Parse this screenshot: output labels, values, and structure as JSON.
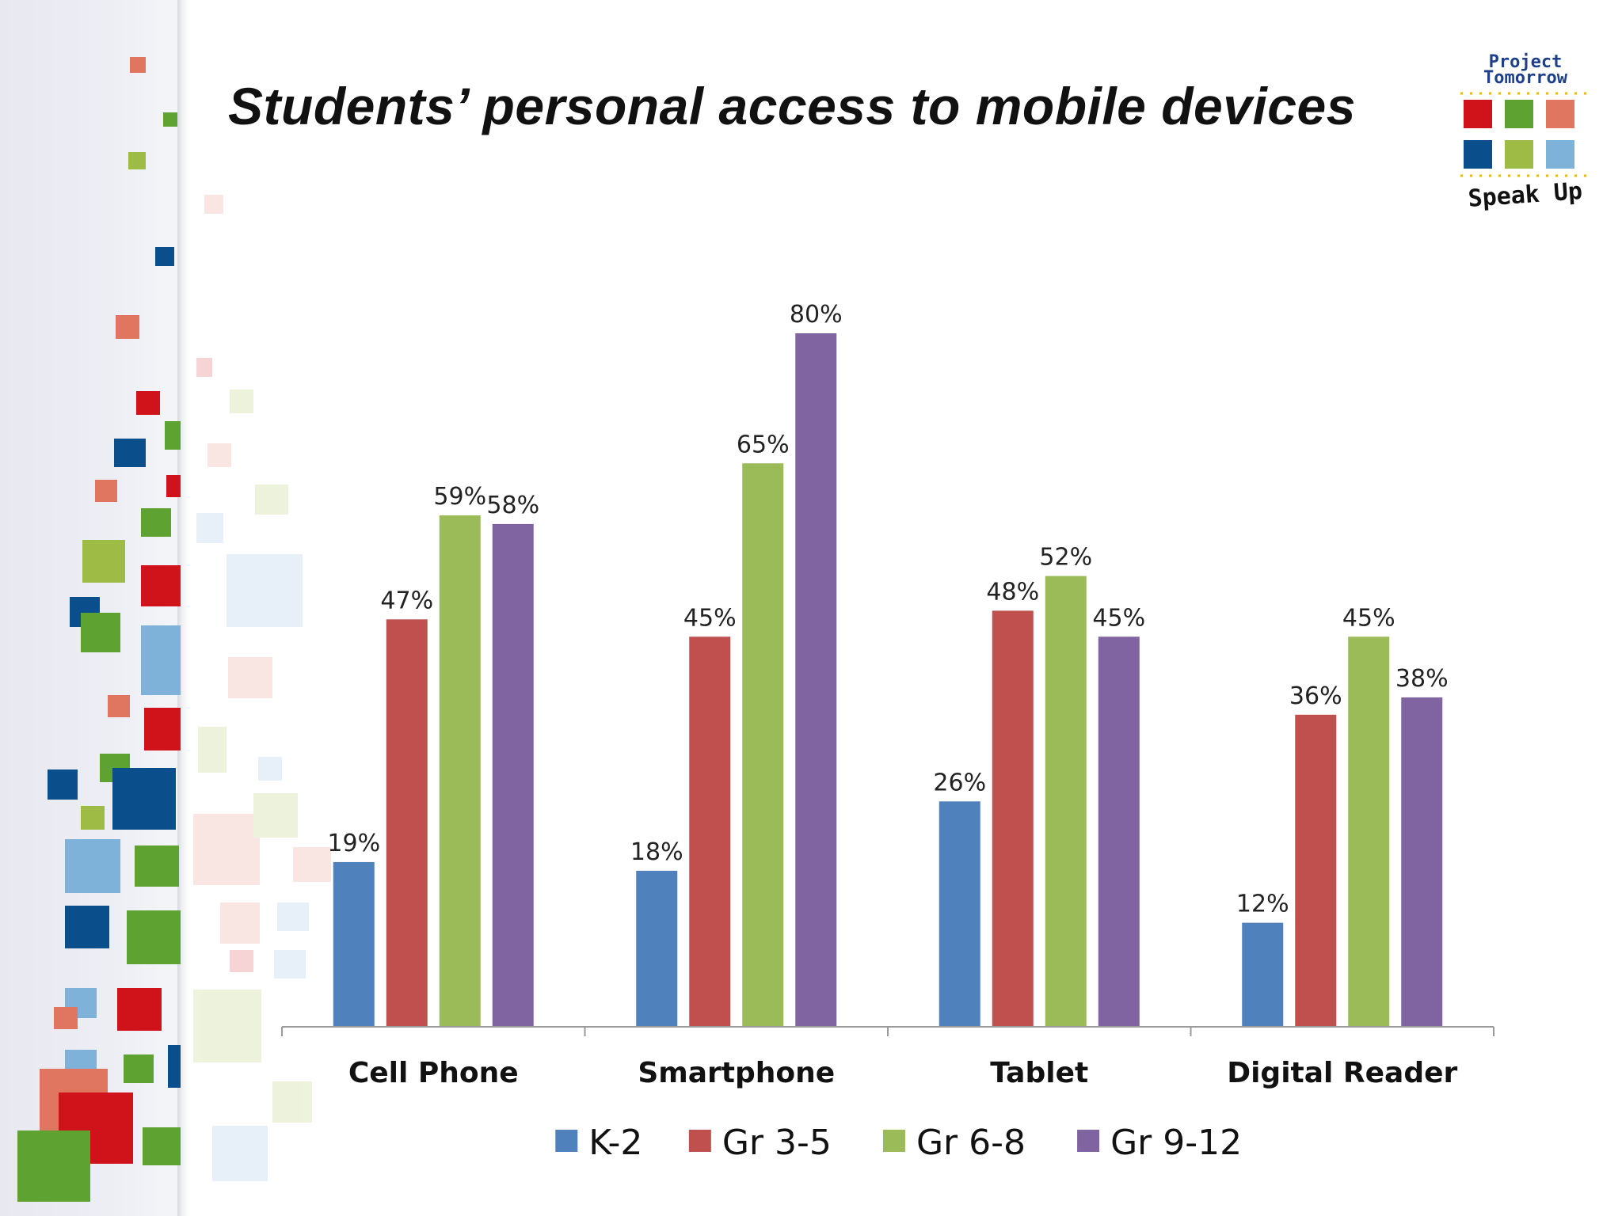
{
  "slide": {
    "title": "Students’ personal access to mobile devices"
  },
  "logo": {
    "line1": "Project",
    "line2": "Tomorrow",
    "line3": "Speak Up",
    "squares": [
      "#d0121b",
      "#5ea331",
      "#e07560",
      "#0a4f8c",
      "#9dbb45",
      "#7fb2d9"
    ]
  },
  "chart_data": {
    "type": "bar",
    "categories": [
      "Cell Phone",
      "Smartphone",
      "Tablet",
      "Digital Reader"
    ],
    "series": [
      {
        "name": "K-2",
        "color": "#4f81bd",
        "values": [
          19,
          18,
          26,
          12
        ],
        "labels": [
          "19%",
          "18%",
          "26%",
          "12%"
        ]
      },
      {
        "name": "Gr 3-5",
        "color": "#c0504d",
        "values": [
          47,
          45,
          48,
          36
        ],
        "labels": [
          "47%",
          "45%",
          "48%",
          "36%"
        ]
      },
      {
        "name": "Gr 6-8",
        "color": "#9bbb59",
        "values": [
          59,
          65,
          52,
          45
        ],
        "labels": [
          "59%",
          "65%",
          "52%",
          "45%"
        ]
      },
      {
        "name": "Gr 9-12",
        "color": "#8064a2",
        "values": [
          58,
          80,
          45,
          38
        ],
        "labels": [
          "58%",
          "80%",
          "45%",
          "38%"
        ]
      }
    ],
    "ylim": [
      0,
      80
    ],
    "grid": false,
    "legend_position": "bottom"
  }
}
